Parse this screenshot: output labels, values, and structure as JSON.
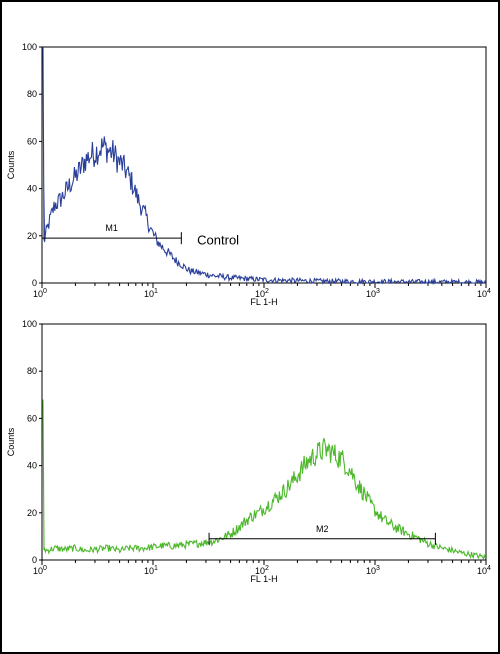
{
  "chart_data": [
    {
      "type": "line",
      "ylabel": "Counts",
      "xlabel": "FL 1-H",
      "x_scale": "log",
      "xlim": [
        1,
        10000
      ],
      "ylim": [
        0,
        100
      ],
      "yticks": [
        "0",
        "20",
        "40",
        "60",
        "80",
        "100"
      ],
      "xtick_base": "10",
      "xtick_exponents": [
        "0",
        "1",
        "2",
        "3",
        "4"
      ],
      "color": "#2a3f9a",
      "series": [
        {
          "x": [
            1.0,
            1.05,
            1.1,
            1.2,
            1.3,
            1.45,
            1.6,
            1.8,
            2.0,
            2.2,
            2.45,
            2.7,
            3.0,
            3.3,
            3.6,
            4.0,
            4.4,
            4.8,
            5.3,
            5.8,
            6.4,
            7.0,
            7.7,
            8.5,
            9.3,
            10.2,
            11.2,
            12.3,
            13.5,
            15.0,
            16.5,
            18.0,
            20.0,
            22.0,
            25.0,
            28.0,
            32.0,
            36.0,
            40.0,
            45.0,
            50.0,
            60.0,
            70.0,
            80.0,
            100.0,
            120.0,
            150.0,
            200.0,
            300.0,
            500.0,
            1000.0,
            2000.0,
            5000.0,
            10000.0
          ],
          "y": [
            100,
            18,
            22,
            28,
            33,
            35,
            38,
            42,
            45,
            48,
            52,
            54,
            55,
            57,
            58,
            56,
            55,
            52,
            50,
            47,
            43,
            38,
            33,
            29,
            24,
            20,
            17,
            15,
            13,
            11,
            9,
            8,
            6,
            5,
            4.5,
            4,
            3.5,
            3,
            2.8,
            2.5,
            2.2,
            2,
            1.8,
            1.6,
            1.4,
            1.2,
            1.1,
            1,
            0.8,
            0.7,
            0.6,
            0.5,
            0.4,
            0.3
          ]
        }
      ],
      "annotations": [
        {
          "label": "M1",
          "x_start": 1.0,
          "x_end": 18.0,
          "y": 19
        },
        {
          "label": "Control",
          "x": 25.0,
          "y": 18
        }
      ]
    },
    {
      "type": "line",
      "ylabel": "Counts",
      "xlabel": "FL 1-H",
      "x_scale": "log",
      "xlim": [
        1,
        10000
      ],
      "ylim": [
        0,
        100
      ],
      "yticks": [
        "0",
        "20",
        "40",
        "60",
        "80",
        "100"
      ],
      "xtick_base": "10",
      "xtick_exponents": [
        "0",
        "1",
        "2",
        "3",
        "4"
      ],
      "color": "#4db82c",
      "series": [
        {
          "x": [
            1.0,
            1.02,
            1.1,
            1.3,
            1.6,
            2.0,
            2.5,
            3.0,
            4.0,
            5.0,
            6.0,
            8.0,
            10.0,
            12.0,
            15.0,
            20.0,
            25.0,
            30.0,
            35.0,
            40.0,
            50.0,
            60.0,
            70.0,
            80.0,
            90.0,
            100.0,
            120.0,
            150.0,
            180.0,
            200.0,
            250.0,
            300.0,
            350.0,
            400.0,
            450.0,
            500.0,
            600.0,
            700.0,
            800.0,
            900.0,
            1000.0,
            1200.0,
            1500.0,
            2000.0,
            2500.0,
            3000.0,
            4000.0,
            5000.0,
            6000.0,
            7000.0,
            8000.0,
            9000.0,
            10000.0
          ],
          "y": [
            68,
            5,
            4,
            5,
            4.5,
            5,
            4,
            4.5,
            5,
            4,
            5,
            5,
            5.5,
            6,
            6,
            6.5,
            7,
            7.5,
            8,
            9,
            11,
            14,
            17,
            19,
            20,
            22,
            25,
            29,
            33,
            36,
            42,
            45,
            47,
            46,
            44,
            43,
            38,
            32,
            28,
            24,
            21,
            17,
            14,
            11,
            9,
            7,
            5,
            4,
            3,
            2.5,
            2,
            1.5,
            1
          ]
        }
      ],
      "annotations": [
        {
          "label": "M2",
          "x_start": 32.0,
          "x_end": 3500.0,
          "y": 9
        }
      ]
    }
  ]
}
